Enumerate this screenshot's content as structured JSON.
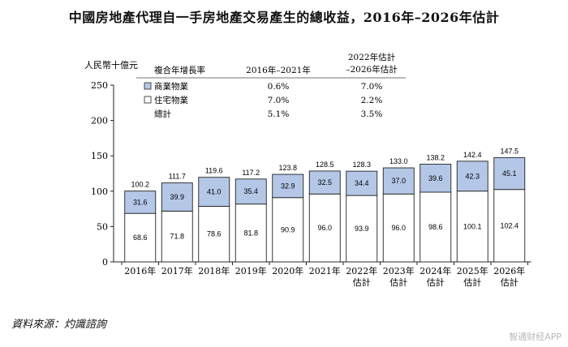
{
  "title": "中國房地產代理自一手房地產交易產生的總收益，2016年–2026年估計",
  "source_note": "資料來源：灼識諮詢",
  "watermark": "智通财经APP",
  "colors": {
    "commercial": "#b4c7e7",
    "residential": "#ffffff",
    "border": "#222222"
  },
  "legend": {
    "header_growth": "複合年增長率",
    "header_period1": "2016年–2021年",
    "header_period2_line1": "2022年估計",
    "header_period2_line2": "–2026年估計",
    "rows": [
      {
        "label": "商業物業",
        "cagr1": "0.6%",
        "cagr2": "7.0%",
        "swatch": "commercial-swatch-icon"
      },
      {
        "label": "住宅物業",
        "cagr1": "7.0%",
        "cagr2": "2.2%",
        "swatch": "residential-swatch-icon"
      },
      {
        "label": "總計",
        "cagr1": "5.1%",
        "cagr2": "3.5%",
        "swatch": null
      }
    ]
  },
  "chart_data": {
    "type": "bar",
    "stacked": true,
    "title": "中國房地產代理自一手房地產交易產生的總收益，2016年–2026年估計",
    "ylabel": "人民幣十億元",
    "xlabel": "",
    "ylim": [
      0,
      250
    ],
    "yticks": [
      0,
      50,
      100,
      150,
      200,
      250
    ],
    "categories": [
      [
        "2016年"
      ],
      [
        "2017年"
      ],
      [
        "2018年"
      ],
      [
        "2019年"
      ],
      [
        "2020年"
      ],
      [
        "2021年"
      ],
      [
        "2022年",
        "估計"
      ],
      [
        "2023年",
        "估計"
      ],
      [
        "2024年",
        "估計"
      ],
      [
        "2025年",
        "估計"
      ],
      [
        "2026年",
        "估計"
      ]
    ],
    "series": [
      {
        "name": "住宅物業",
        "color": "#ffffff",
        "values": [
          68.6,
          71.8,
          78.6,
          81.8,
          90.9,
          96.0,
          93.9,
          96.0,
          98.6,
          100.1,
          102.4
        ]
      },
      {
        "name": "商業物業",
        "color": "#b4c7e7",
        "values": [
          31.6,
          39.9,
          41.0,
          35.4,
          32.9,
          32.5,
          34.4,
          37.0,
          39.6,
          42.3,
          45.1
        ]
      }
    ],
    "totals": [
      100.2,
      111.7,
      119.6,
      117.2,
      123.8,
      128.5,
      128.3,
      133.0,
      138.2,
      142.4,
      147.5
    ]
  }
}
